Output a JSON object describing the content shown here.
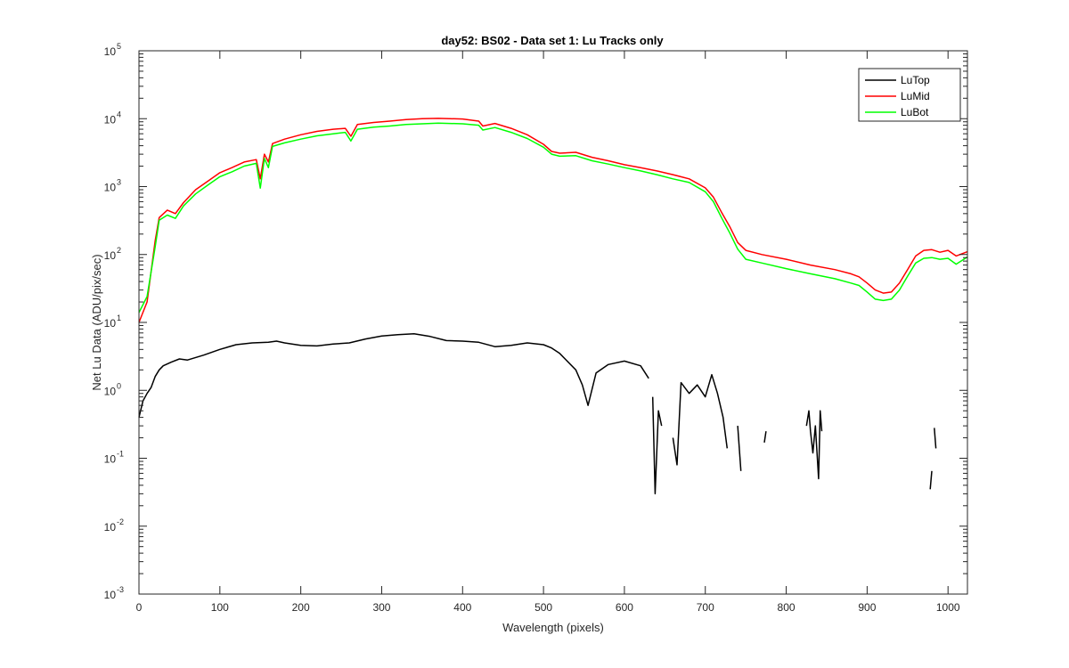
{
  "chart_data": {
    "type": "line",
    "title": "day52: BS02 - Data set 1: Lu Tracks only",
    "xlabel": "Wavelength (pixels)",
    "ylabel": "Net Lu Data (ADU/pix/sec)",
    "xlim": [
      0,
      1024
    ],
    "ylim": [
      0.001,
      100000
    ],
    "y_scale": "log",
    "x_ticks": [
      0,
      100,
      200,
      300,
      400,
      500,
      600,
      700,
      800,
      900,
      1000
    ],
    "y_tick_labels": [
      {
        "base": "10",
        "exp": "-3"
      },
      {
        "base": "10",
        "exp": "-2"
      },
      {
        "base": "10",
        "exp": "-1"
      },
      {
        "base": "10",
        "exp": "0"
      },
      {
        "base": "10",
        "exp": "1"
      },
      {
        "base": "10",
        "exp": "2"
      },
      {
        "base": "10",
        "exp": "3"
      },
      {
        "base": "10",
        "exp": "4"
      },
      {
        "base": "10",
        "exp": "5"
      }
    ],
    "grid": false,
    "legend_position": "top-right",
    "series": [
      {
        "name": "LuTop",
        "color": "#000000",
        "segments": [
          [
            [
              0,
              0.4
            ],
            [
              5,
              0.7
            ],
            [
              10,
              0.9
            ],
            [
              15,
              1.1
            ],
            [
              20,
              1.6
            ],
            [
              25,
              2.0
            ],
            [
              30,
              2.3
            ],
            [
              40,
              2.6
            ],
            [
              50,
              2.9
            ],
            [
              60,
              2.8
            ],
            [
              80,
              3.3
            ],
            [
              100,
              4.0
            ],
            [
              120,
              4.7
            ],
            [
              140,
              5.0
            ],
            [
              160,
              5.1
            ],
            [
              170,
              5.3
            ],
            [
              180,
              5.0
            ],
            [
              200,
              4.6
            ],
            [
              220,
              4.5
            ],
            [
              240,
              4.8
            ],
            [
              260,
              5.0
            ],
            [
              280,
              5.7
            ],
            [
              300,
              6.3
            ],
            [
              320,
              6.6
            ],
            [
              340,
              6.8
            ],
            [
              360,
              6.2
            ],
            [
              380,
              5.4
            ],
            [
              400,
              5.3
            ],
            [
              420,
              5.1
            ],
            [
              440,
              4.4
            ],
            [
              460,
              4.6
            ],
            [
              480,
              5.0
            ],
            [
              500,
              4.7
            ],
            [
              510,
              4.2
            ],
            [
              520,
              3.5
            ],
            [
              540,
              2.0
            ],
            [
              548,
              1.2
            ],
            [
              555,
              0.6
            ],
            [
              565,
              1.8
            ],
            [
              580,
              2.4
            ],
            [
              600,
              2.7
            ],
            [
              620,
              2.3
            ],
            [
              630,
              1.5
            ]
          ],
          [
            [
              635,
              0.8
            ],
            [
              638,
              0.03
            ],
            [
              642,
              0.5
            ],
            [
              646,
              0.3
            ]
          ],
          [
            [
              660,
              0.2
            ],
            [
              665,
              0.08
            ],
            [
              670,
              1.3
            ],
            [
              680,
              0.9
            ],
            [
              690,
              1.2
            ],
            [
              700,
              0.8
            ],
            [
              708,
              1.7
            ],
            [
              715,
              0.9
            ],
            [
              722,
              0.4
            ],
            [
              727,
              0.14
            ]
          ],
          [
            [
              740,
              0.3
            ],
            [
              744,
              0.065
            ]
          ],
          [
            [
              773,
              0.17
            ],
            [
              775,
              0.25
            ]
          ],
          [
            [
              825,
              0.3
            ],
            [
              828,
              0.5
            ],
            [
              830,
              0.25
            ],
            [
              833,
              0.12
            ],
            [
              836,
              0.3
            ],
            [
              840,
              0.05
            ],
            [
              842,
              0.5
            ],
            [
              844,
              0.25
            ]
          ],
          [
            [
              978,
              0.035
            ],
            [
              980,
              0.065
            ]
          ],
          [
            [
              983,
              0.28
            ],
            [
              985,
              0.14
            ]
          ]
        ]
      },
      {
        "name": "LuMid",
        "color": "#ff0000",
        "segments": [
          [
            [
              0,
              10
            ],
            [
              10,
              20
            ],
            [
              20,
              160
            ],
            [
              25,
              350
            ],
            [
              35,
              450
            ],
            [
              45,
              400
            ],
            [
              55,
              580
            ],
            [
              70,
              900
            ],
            [
              85,
              1200
            ],
            [
              100,
              1600
            ],
            [
              115,
              1900
            ],
            [
              130,
              2300
            ],
            [
              145,
              2500
            ],
            [
              150,
              1300
            ],
            [
              155,
              3000
            ],
            [
              160,
              2300
            ],
            [
              165,
              4300
            ],
            [
              180,
              5000
            ],
            [
              200,
              5800
            ],
            [
              220,
              6500
            ],
            [
              240,
              7000
            ],
            [
              255,
              7200
            ],
            [
              262,
              5500
            ],
            [
              270,
              8200
            ],
            [
              290,
              8800
            ],
            [
              310,
              9200
            ],
            [
              330,
              9700
            ],
            [
              350,
              10000
            ],
            [
              370,
              10100
            ],
            [
              400,
              9900
            ],
            [
              420,
              9200
            ],
            [
              425,
              7800
            ],
            [
              440,
              8500
            ],
            [
              460,
              7200
            ],
            [
              480,
              5800
            ],
            [
              500,
              4200
            ],
            [
              510,
              3300
            ],
            [
              520,
              3100
            ],
            [
              540,
              3200
            ],
            [
              560,
              2700
            ],
            [
              580,
              2400
            ],
            [
              600,
              2100
            ],
            [
              620,
              1900
            ],
            [
              640,
              1700
            ],
            [
              660,
              1500
            ],
            [
              680,
              1300
            ],
            [
              700,
              960
            ],
            [
              710,
              700
            ],
            [
              720,
              420
            ],
            [
              730,
              260
            ],
            [
              740,
              150
            ],
            [
              750,
              115
            ],
            [
              770,
              100
            ],
            [
              800,
              85
            ],
            [
              830,
              70
            ],
            [
              860,
              60
            ],
            [
              880,
              52
            ],
            [
              890,
              47
            ],
            [
              900,
              38
            ],
            [
              910,
              30
            ],
            [
              920,
              27
            ],
            [
              930,
              28
            ],
            [
              940,
              38
            ],
            [
              950,
              60
            ],
            [
              960,
              95
            ],
            [
              970,
              115
            ],
            [
              980,
              118
            ],
            [
              990,
              108
            ],
            [
              1000,
              115
            ],
            [
              1010,
              95
            ],
            [
              1024,
              110
            ]
          ]
        ]
      },
      {
        "name": "LuBot",
        "color": "#00ff00",
        "segments": [
          [
            [
              0,
              14
            ],
            [
              10,
              24
            ],
            [
              20,
              130
            ],
            [
              25,
              320
            ],
            [
              35,
              380
            ],
            [
              45,
              340
            ],
            [
              55,
              520
            ],
            [
              70,
              780
            ],
            [
              85,
              1050
            ],
            [
              100,
              1400
            ],
            [
              115,
              1650
            ],
            [
              130,
              2000
            ],
            [
              145,
              2200
            ],
            [
              150,
              950
            ],
            [
              155,
              2600
            ],
            [
              160,
              1900
            ],
            [
              165,
              3900
            ],
            [
              180,
              4400
            ],
            [
              200,
              5000
            ],
            [
              220,
              5600
            ],
            [
              240,
              6000
            ],
            [
              255,
              6300
            ],
            [
              262,
              4700
            ],
            [
              270,
              7000
            ],
            [
              290,
              7500
            ],
            [
              310,
              7800
            ],
            [
              330,
              8200
            ],
            [
              350,
              8400
            ],
            [
              370,
              8600
            ],
            [
              400,
              8400
            ],
            [
              420,
              8000
            ],
            [
              425,
              6800
            ],
            [
              440,
              7400
            ],
            [
              460,
              6300
            ],
            [
              480,
              5100
            ],
            [
              500,
              3800
            ],
            [
              510,
              3000
            ],
            [
              520,
              2800
            ],
            [
              540,
              2850
            ],
            [
              560,
              2400
            ],
            [
              580,
              2150
            ],
            [
              600,
              1900
            ],
            [
              620,
              1700
            ],
            [
              640,
              1500
            ],
            [
              660,
              1300
            ],
            [
              680,
              1150
            ],
            [
              700,
              840
            ],
            [
              710,
              600
            ],
            [
              720,
              350
            ],
            [
              730,
              210
            ],
            [
              740,
              120
            ],
            [
              750,
              85
            ],
            [
              770,
              75
            ],
            [
              800,
              62
            ],
            [
              830,
              52
            ],
            [
              860,
              44
            ],
            [
              880,
              38
            ],
            [
              890,
              35
            ],
            [
              900,
              28
            ],
            [
              910,
              22
            ],
            [
              920,
              21
            ],
            [
              930,
              22
            ],
            [
              940,
              30
            ],
            [
              950,
              48
            ],
            [
              960,
              75
            ],
            [
              970,
              88
            ],
            [
              980,
              90
            ],
            [
              990,
              85
            ],
            [
              1000,
              88
            ],
            [
              1010,
              72
            ],
            [
              1024,
              92
            ]
          ]
        ]
      }
    ]
  }
}
